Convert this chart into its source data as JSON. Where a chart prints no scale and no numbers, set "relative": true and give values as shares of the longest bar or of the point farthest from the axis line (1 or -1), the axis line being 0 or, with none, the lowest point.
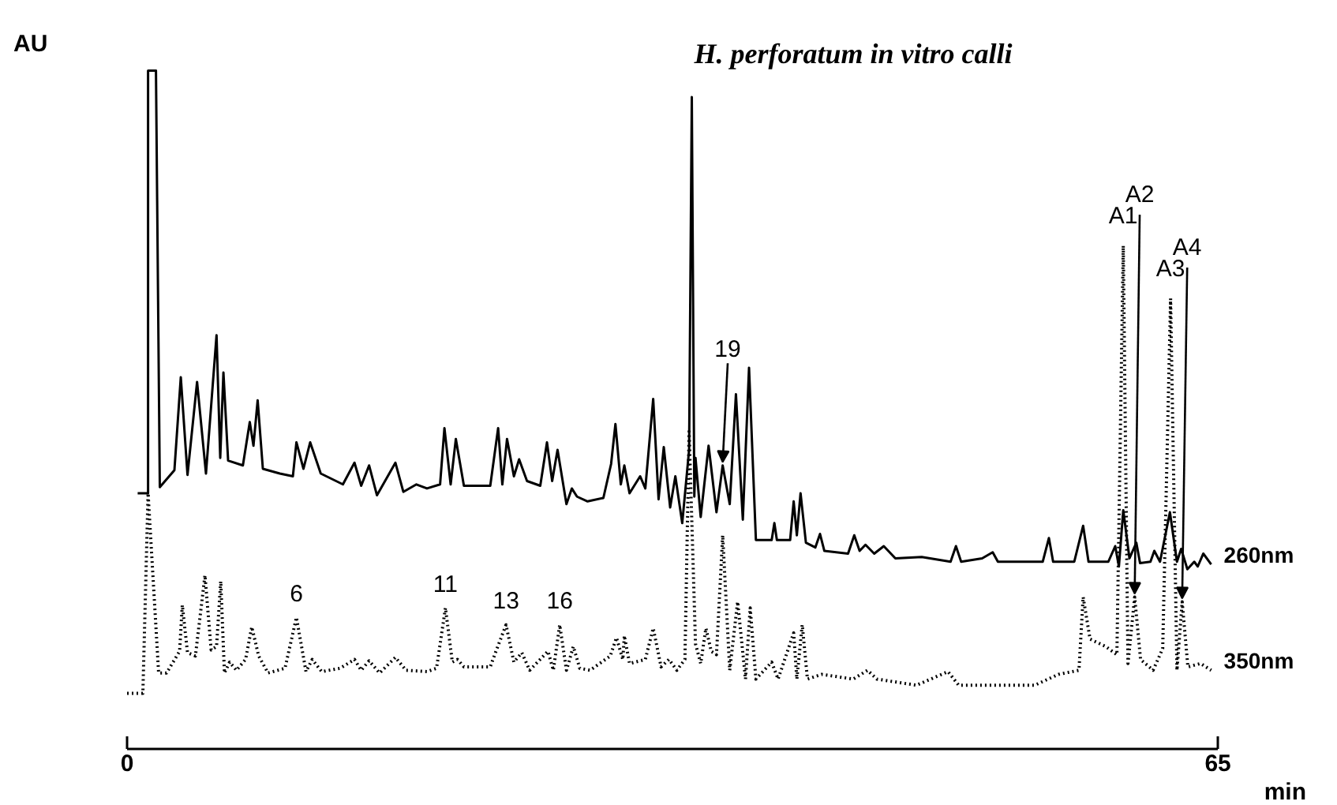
{
  "chart_data": {
    "type": "line",
    "title": "H. perforatum in vitro  calli",
    "xlabel": "min",
    "ylabel": "AU",
    "relative": true,
    "xlim": [
      0,
      65
    ],
    "xticks": [
      0,
      65
    ],
    "grid": false,
    "series": [
      {
        "name": "260nm",
        "color": "#000000",
        "line_style": "solid",
        "x": [
          0.63,
          1.25,
          1.25,
          1.72,
          1.95,
          2.82,
          3.2,
          3.6,
          4.17,
          4.7,
          5.33,
          5.55,
          5.74,
          6.02,
          6.9,
          7.31,
          7.53,
          7.78,
          8.09,
          9.1,
          9.88,
          10.09,
          10.51,
          10.91,
          11.54,
          12.86,
          13.55,
          13.95,
          14.42,
          14.89,
          15.99,
          16.46,
          17.24,
          17.87,
          18.65,
          18.91,
          19.28,
          19.59,
          20.07,
          21.64,
          22.11,
          22.36,
          22.64,
          23.05,
          23.36,
          23.83,
          24.62,
          25.02,
          25.33,
          25.65,
          26.18,
          26.5,
          26.81,
          27.44,
          28.38,
          28.84,
          29.1,
          29.42,
          29.63,
          29.94,
          30.57,
          30.88,
          31.35,
          31.67,
          31.98,
          32.36,
          32.67,
          33.08,
          33.49,
          33.65,
          33.8,
          33.87,
          34.18,
          34.65,
          35.12,
          35.49,
          35.91,
          36.28,
          36.69,
          37.06,
          37.47,
          38.41,
          38.57,
          38.72,
          39.51,
          39.72,
          39.91,
          40.13,
          40.45,
          41.01,
          41.29,
          41.55,
          42.96,
          43.33,
          43.65,
          44.0,
          44.52,
          45.09,
          45.78,
          47.35,
          49.07,
          49.39,
          49.7,
          50.95,
          51.58,
          51.89,
          54.56,
          54.93,
          55.18,
          56.44,
          56.97,
          57.29,
          58.47,
          58.88,
          59.1,
          59.36,
          59.73,
          60.14,
          60.36,
          60.98,
          61.21,
          61.55,
          62.14,
          62.56,
          62.81,
          63.18,
          63.59,
          63.8,
          64.13,
          64.6
        ],
        "values": [
          0.377,
          0.377,
          1.0,
          1.0,
          0.386,
          0.411,
          0.548,
          0.404,
          0.541,
          0.406,
          0.61,
          0.429,
          0.555,
          0.425,
          0.418,
          0.482,
          0.447,
          0.514,
          0.413,
          0.406,
          0.402,
          0.452,
          0.413,
          0.452,
          0.406,
          0.39,
          0.422,
          0.388,
          0.418,
          0.374,
          0.422,
          0.379,
          0.39,
          0.384,
          0.39,
          0.473,
          0.39,
          0.457,
          0.388,
          0.388,
          0.473,
          0.39,
          0.457,
          0.402,
          0.427,
          0.395,
          0.388,
          0.452,
          0.395,
          0.441,
          0.361,
          0.384,
          0.372,
          0.365,
          0.37,
          0.42,
          0.479,
          0.39,
          0.418,
          0.377,
          0.402,
          0.384,
          0.516,
          0.368,
          0.445,
          0.356,
          0.402,
          0.333,
          0.441,
          0.961,
          0.372,
          0.429,
          0.342,
          0.447,
          0.349,
          0.418,
          0.361,
          0.523,
          0.338,
          0.562,
          0.308,
          0.308,
          0.333,
          0.308,
          0.308,
          0.365,
          0.315,
          0.377,
          0.304,
          0.297,
          0.317,
          0.292,
          0.288,
          0.315,
          0.292,
          0.301,
          0.288,
          0.299,
          0.281,
          0.283,
          0.276,
          0.299,
          0.276,
          0.281,
          0.29,
          0.276,
          0.276,
          0.311,
          0.276,
          0.276,
          0.329,
          0.276,
          0.276,
          0.299,
          0.269,
          0.352,
          0.281,
          0.304,
          0.274,
          0.276,
          0.292,
          0.276,
          0.349,
          0.276,
          0.295,
          0.265,
          0.276,
          0.269,
          0.288,
          0.272
        ]
      },
      {
        "name": "350nm",
        "color": "#000000",
        "line_style": "dotted",
        "x": [
          0.0,
          0.94,
          1.25,
          1.88,
          2.35,
          3.13,
          3.29,
          3.6,
          4.07,
          4.64,
          5.01,
          5.33,
          5.58,
          5.8,
          6.11,
          6.52,
          7.06,
          7.43,
          7.84,
          8.4,
          9.41,
          10.09,
          10.66,
          11.03,
          11.6,
          12.7,
          13.55,
          13.95,
          14.42,
          15.05,
          15.99,
          16.62,
          17.87,
          18.44,
          18.97,
          19.38,
          19.69,
          20.07,
          21.64,
          21.95,
          22.58,
          23.05,
          23.52,
          23.99,
          25.08,
          25.4,
          25.78,
          26.18,
          26.59,
          26.97,
          27.59,
          28.79,
          29.16,
          29.54,
          29.63,
          29.94,
          30.88,
          31.35,
          31.82,
          32.29,
          32.76,
          33.24,
          33.49,
          33.87,
          34.18,
          34.49,
          34.81,
          35.12,
          35.49,
          35.91,
          36.38,
          36.85,
          37.13,
          37.47,
          38.41,
          38.79,
          39.72,
          39.91,
          40.23,
          40.54,
          41.39,
          43.27,
          44.12,
          44.68,
          47.04,
          48.92,
          49.55,
          54.09,
          55.5,
          56.72,
          56.97,
          57.38,
          58.32,
          58.98,
          59.36,
          59.64,
          60.04,
          60.39,
          61.14,
          61.71,
          62.18,
          62.56,
          62.87,
          63.21,
          63.97,
          64.6
        ],
        "values": [
          0.082,
          0.082,
          0.377,
          0.112,
          0.112,
          0.144,
          0.212,
          0.142,
          0.137,
          0.256,
          0.146,
          0.151,
          0.247,
          0.112,
          0.128,
          0.116,
          0.132,
          0.18,
          0.137,
          0.112,
          0.119,
          0.194,
          0.114,
          0.132,
          0.114,
          0.119,
          0.132,
          0.116,
          0.13,
          0.112,
          0.135,
          0.116,
          0.114,
          0.119,
          0.208,
          0.128,
          0.132,
          0.121,
          0.121,
          0.142,
          0.183,
          0.128,
          0.142,
          0.116,
          0.144,
          0.116,
          0.183,
          0.116,
          0.151,
          0.119,
          0.116,
          0.137,
          0.164,
          0.132,
          0.167,
          0.126,
          0.132,
          0.178,
          0.121,
          0.132,
          0.116,
          0.132,
          0.468,
          0.155,
          0.126,
          0.178,
          0.144,
          0.139,
          0.315,
          0.116,
          0.217,
          0.103,
          0.208,
          0.103,
          0.128,
          0.103,
          0.171,
          0.103,
          0.183,
          0.103,
          0.11,
          0.103,
          0.116,
          0.103,
          0.094,
          0.114,
          0.094,
          0.094,
          0.11,
          0.116,
          0.224,
          0.162,
          0.151,
          0.139,
          0.742,
          0.126,
          0.224,
          0.132,
          0.116,
          0.148,
          0.664,
          0.116,
          0.217,
          0.121,
          0.126,
          0.116
        ]
      }
    ],
    "annotations": [
      {
        "text": "6",
        "x": 10.09,
        "y": 0.194
      },
      {
        "text": "11",
        "x": 18.97,
        "y": 0.208
      },
      {
        "text": "13",
        "x": 22.58,
        "y": 0.183
      },
      {
        "text": "16",
        "x": 25.78,
        "y": 0.183
      },
      {
        "text": "19",
        "x": 35.49,
        "y": 0.418
      },
      {
        "text": "A1",
        "x": 59.36,
        "y": 0.742
      },
      {
        "text": "A2",
        "x": 60.04,
        "y": 0.224
      },
      {
        "text": "A3",
        "x": 62.18,
        "y": 0.664
      },
      {
        "text": "A4",
        "x": 62.87,
        "y": 0.217
      }
    ]
  }
}
